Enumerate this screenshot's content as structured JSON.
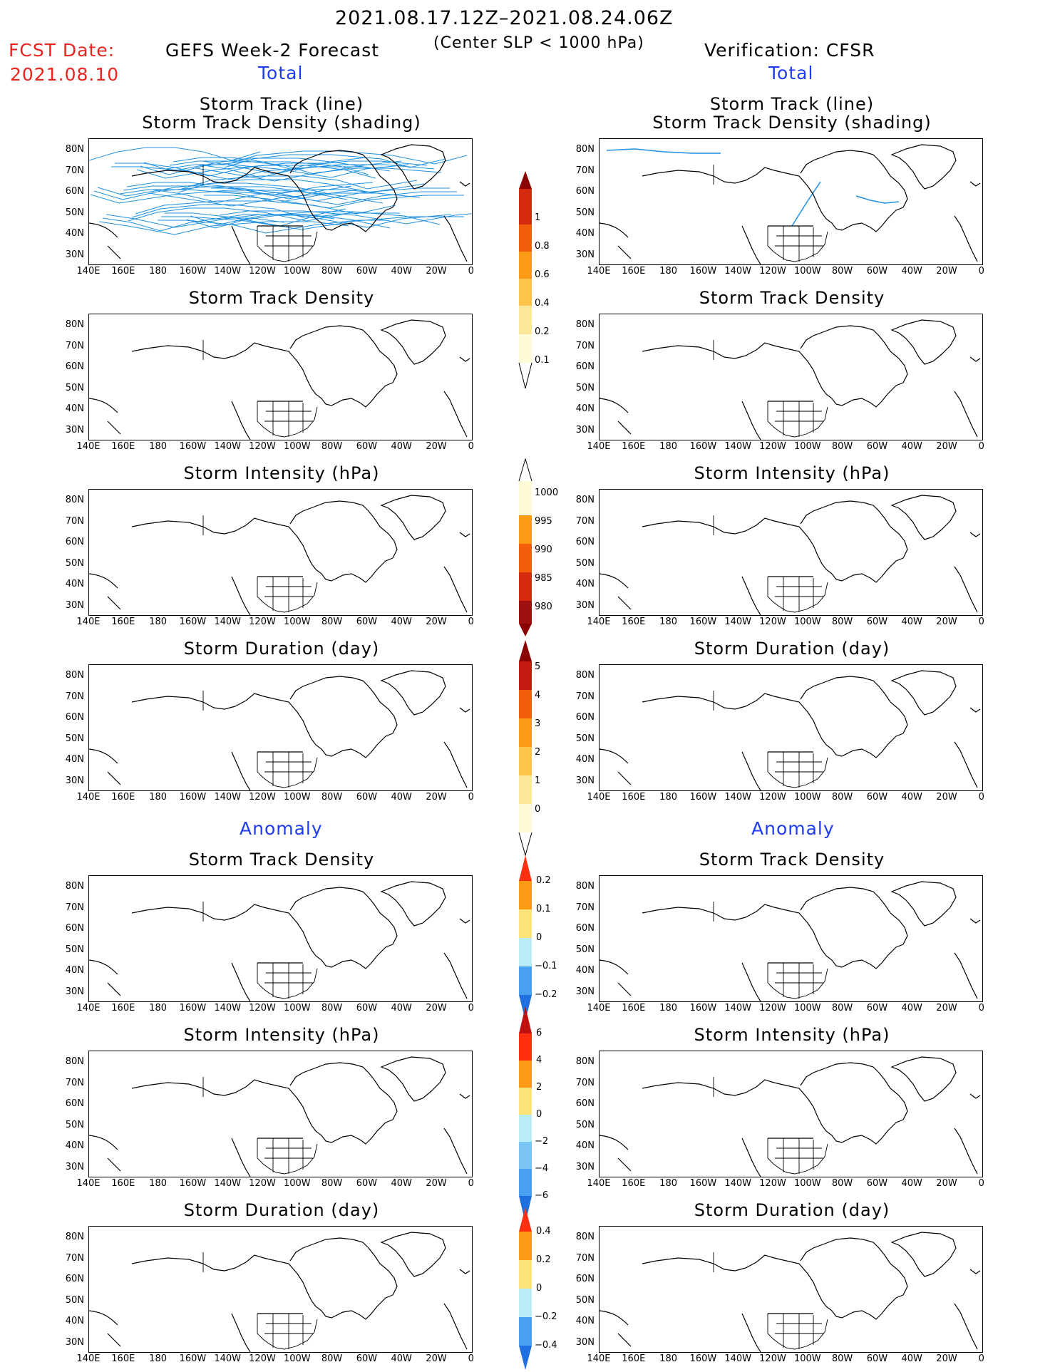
{
  "header": {
    "date_range": "2021.08.17.12Z–2021.08.24.06Z",
    "fcst_label": "FCST Date:",
    "fcst_date": "2021.08.10",
    "forecast_title": "GEFS Week-2 Forecast",
    "criterion": "(Center SLP < 1000 hPa)",
    "verification_title": "Verification: CFSR",
    "total_label": "Total",
    "anomaly_label": "Anomaly"
  },
  "axes": {
    "lat_labels": [
      "80N",
      "70N",
      "60N",
      "50N",
      "40N",
      "30N"
    ],
    "lon_labels": [
      "140E",
      "160E",
      "180",
      "160W",
      "140W",
      "120W",
      "100W",
      "80W",
      "60W",
      "40W",
      "20W",
      "0"
    ]
  },
  "panels": {
    "row1_title_a": "Storm Track (line)",
    "row1_title_b": "Storm Track Density (shading)",
    "density": "Storm Track Density",
    "intensity": "Storm Intensity (hPa)",
    "duration": "Storm Duration (day)"
  },
  "colorbars": {
    "total_density": [
      "1",
      "0.8",
      "0.6",
      "0.4",
      "0.2",
      "0.1"
    ],
    "total_intensity": [
      "1000",
      "995",
      "990",
      "985",
      "980"
    ],
    "total_duration": [
      "5",
      "4",
      "3",
      "2",
      "1",
      "0"
    ],
    "anom_density": [
      "0.2",
      "0.1",
      "0",
      "−0.1",
      "−0.2"
    ],
    "anom_intensity": [
      "6",
      "4",
      "2",
      "0",
      "−2",
      "−4",
      "−6"
    ],
    "anom_duration": [
      "0.4",
      "0.2",
      "0",
      "−0.2",
      "−0.4"
    ]
  },
  "colors": {
    "red_text": "#e8251f",
    "blue_text": "#1f3df0",
    "track_line": "#1e90e0"
  }
}
